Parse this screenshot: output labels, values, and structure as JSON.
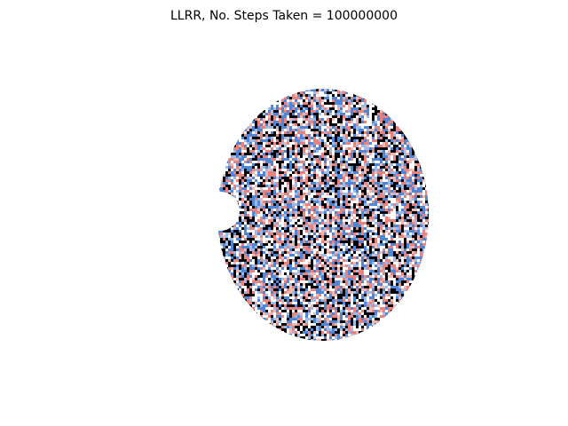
{
  "title": "LLRR, No. Steps Taken = 100000000"
}
